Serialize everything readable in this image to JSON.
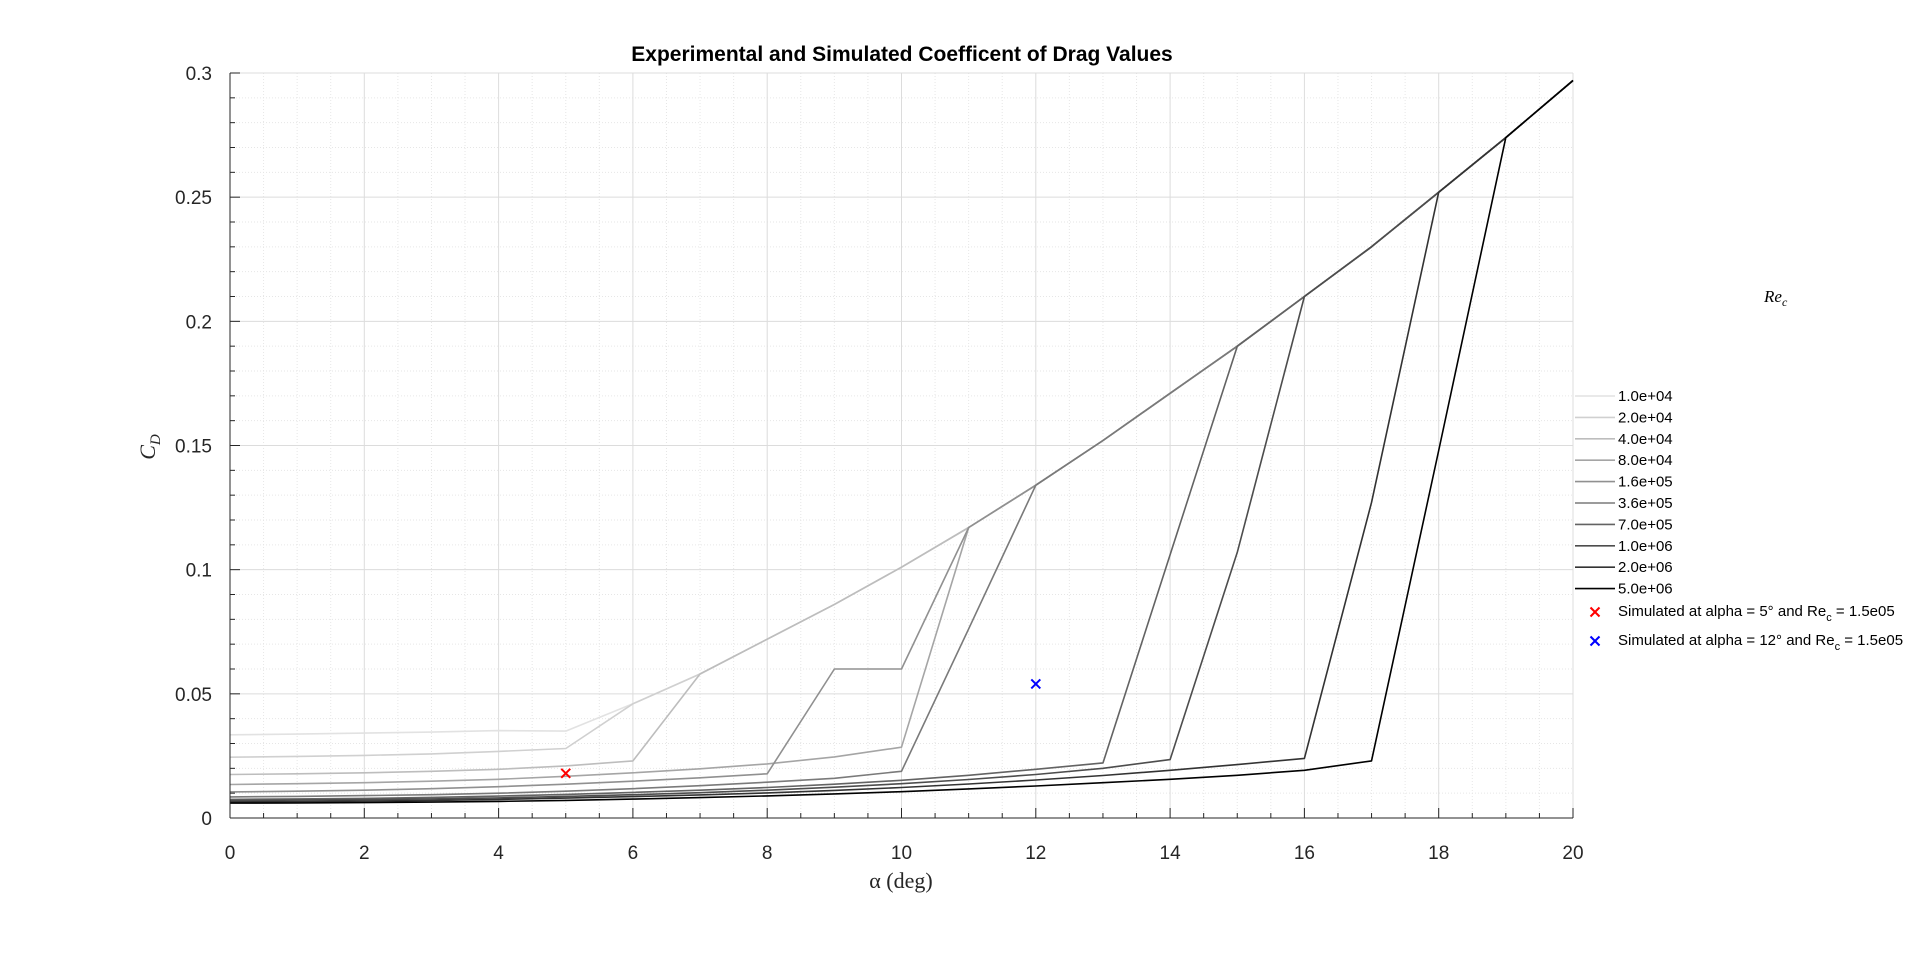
{
  "chart_data": {
    "type": "line",
    "title": "Experimental and Simulated Coefficent of Drag Values",
    "xlabel": "α (deg)",
    "ylabel": "C_D",
    "ylabel_main": "C",
    "ylabel_sub": "D",
    "xlim": [
      0,
      20
    ],
    "ylim": [
      0,
      0.3
    ],
    "xticks": [
      0,
      2,
      4,
      6,
      8,
      10,
      12,
      14,
      16,
      18,
      20
    ],
    "yticks": [
      0,
      0.05,
      0.1,
      0.15,
      0.2,
      0.25,
      0.3
    ],
    "ytick_labels": [
      "0",
      "0.05",
      "0.1",
      "0.15",
      "0.2",
      "0.25",
      "0.3"
    ],
    "grid": true,
    "minor_grid": true,
    "legend_position": "right",
    "legend_title": "Re_c",
    "legend_title_main": "Re",
    "legend_title_sub": "c",
    "x": [
      0,
      1,
      2,
      3,
      4,
      5,
      6,
      7,
      8,
      9,
      10,
      11,
      12,
      13,
      14,
      15,
      16,
      17,
      18,
      19,
      20
    ],
    "series": [
      {
        "name": "1.0e+04",
        "color": "#e2e2e2",
        "values": [
          0.0335,
          0.0338,
          0.0342,
          0.0346,
          0.0352,
          0.035,
          0.046,
          0.058,
          0.072,
          0.086,
          0.101,
          0.117,
          0.134,
          0.152,
          0.171,
          0.19,
          0.21,
          0.23,
          0.252,
          0.274,
          0.297
        ]
      },
      {
        "name": "2.0e+04",
        "color": "#d0d0d0",
        "values": [
          0.0245,
          0.0248,
          0.0252,
          0.0258,
          0.0268,
          0.028,
          0.046,
          0.058,
          0.072,
          0.086,
          0.101,
          0.117,
          0.134,
          0.152,
          0.171,
          0.19,
          0.21,
          0.23,
          0.252,
          0.274,
          0.297
        ]
      },
      {
        "name": "4.0e+04",
        "color": "#bdbdbd",
        "values": [
          0.0175,
          0.0178,
          0.0182,
          0.0188,
          0.0196,
          0.021,
          0.023,
          0.058,
          0.072,
          0.086,
          0.101,
          0.117,
          0.134,
          0.152,
          0.171,
          0.19,
          0.21,
          0.23,
          0.252,
          0.274,
          0.297
        ]
      },
      {
        "name": "8.0e+04",
        "color": "#a5a5a5",
        "values": [
          0.0135,
          0.0138,
          0.0142,
          0.0148,
          0.0156,
          0.0168,
          0.0182,
          0.0198,
          0.0218,
          0.0246,
          0.0285,
          0.117,
          0.134,
          0.152,
          0.171,
          0.19,
          0.21,
          0.23,
          0.252,
          0.274,
          0.297
        ]
      },
      {
        "name": "1.6e+05",
        "color": "#909090",
        "values": [
          0.0105,
          0.0108,
          0.0112,
          0.0118,
          0.0126,
          0.0136,
          0.0148,
          0.0162,
          0.0178,
          0.06,
          0.06,
          0.117,
          0.134,
          0.152,
          0.171,
          0.19,
          0.21,
          0.23,
          0.252,
          0.274,
          0.297
        ]
      },
      {
        "name": "3.6e+05",
        "color": "#7a7a7a",
        "values": [
          0.0085,
          0.0087,
          0.009,
          0.0094,
          0.01,
          0.0108,
          0.0118,
          0.013,
          0.0144,
          0.016,
          0.0188,
          0.0762,
          0.134,
          0.152,
          0.171,
          0.19,
          0.21,
          0.23,
          0.252,
          0.274,
          0.297
        ]
      },
      {
        "name": "7.0e+05",
        "color": "#636363",
        "values": [
          0.0075,
          0.0077,
          0.0079,
          0.0083,
          0.0088,
          0.0095,
          0.0103,
          0.0112,
          0.0123,
          0.0136,
          0.0152,
          0.0172,
          0.0196,
          0.0222,
          0.106,
          0.19,
          0.21,
          0.23,
          0.252,
          0.274,
          0.297
        ]
      },
      {
        "name": "1.0e+06",
        "color": "#4d4d4d",
        "values": [
          0.007,
          0.0072,
          0.0074,
          0.0077,
          0.0081,
          0.0087,
          0.0094,
          0.0102,
          0.0112,
          0.0124,
          0.0138,
          0.0155,
          0.0175,
          0.02,
          0.0235,
          0.107,
          0.21,
          0.23,
          0.252,
          0.274,
          0.297
        ]
      },
      {
        "name": "2.0e+06",
        "color": "#333333",
        "values": [
          0.0065,
          0.0066,
          0.0068,
          0.0071,
          0.0075,
          0.008,
          0.0086,
          0.0093,
          0.0101,
          0.0111,
          0.0123,
          0.0137,
          0.0153,
          0.0171,
          0.0192,
          0.0215,
          0.024,
          0.127,
          0.252,
          0.274,
          0.297
        ]
      },
      {
        "name": "5.0e+06",
        "color": "#000000",
        "values": [
          0.006,
          0.0061,
          0.0062,
          0.0064,
          0.0067,
          0.0071,
          0.0076,
          0.0082,
          0.0089,
          0.0097,
          0.0106,
          0.0117,
          0.0129,
          0.0142,
          0.0156,
          0.0172,
          0.0192,
          0.023,
          0.148,
          0.274,
          0.297
        ]
      }
    ],
    "points": [
      {
        "name": "Simulated at alpha = 5° and Re_c = 1.5e05",
        "label_pre": "Simulated at alpha = 5° and Re",
        "label_sub": "c",
        "label_post": " = 1.5e05",
        "x": 5,
        "y": 0.018,
        "color": "#ff0000",
        "marker": "x"
      },
      {
        "name": "Simulated at alpha = 12° and Re_c = 1.5e05",
        "label_pre": "Simulated at alpha = 12° and Re",
        "label_sub": "c",
        "label_post": " = 1.5e05",
        "x": 12,
        "y": 0.054,
        "color": "#0000ff",
        "marker": "x"
      }
    ]
  }
}
